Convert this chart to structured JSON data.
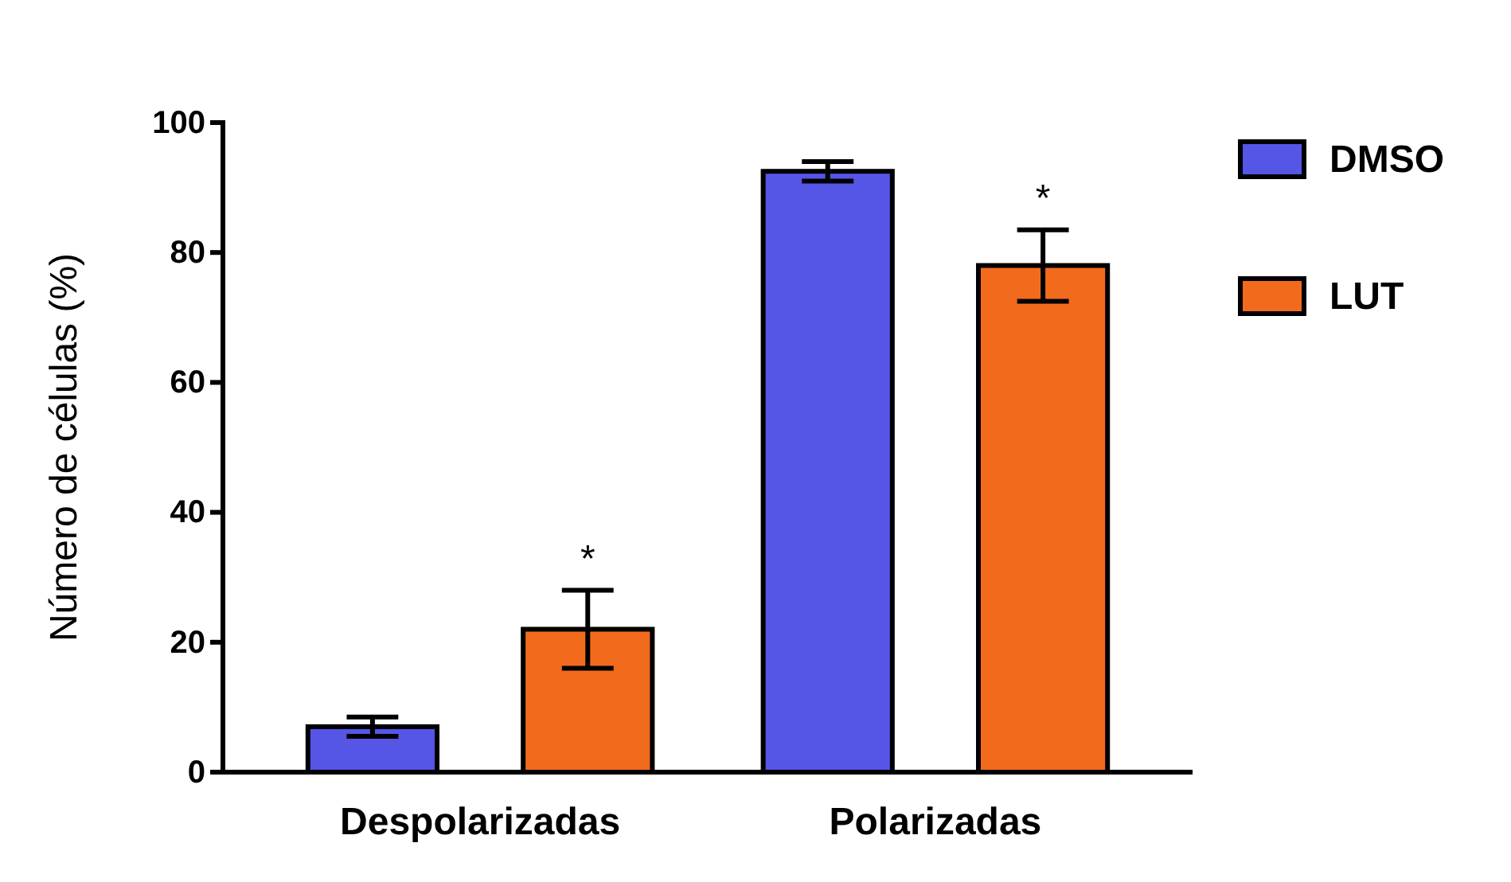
{
  "chart_data": {
    "type": "bar",
    "ylabel": "Número de células (%)",
    "categories": [
      "Despolarizadas",
      "Polarizadas"
    ],
    "series": [
      {
        "name": "DMSO",
        "color": "#5555e6",
        "values": [
          7,
          92.5
        ],
        "errors": [
          1.5,
          1.5
        ]
      },
      {
        "name": "LUT",
        "color": "#f26b1d",
        "values": [
          22,
          78
        ],
        "errors": [
          6,
          5.5
        ]
      }
    ],
    "ylim": [
      0,
      100
    ],
    "yticks": [
      0,
      20,
      40,
      60,
      80,
      100
    ],
    "legend": "top right",
    "annotations": [
      "*",
      "*"
    ]
  }
}
